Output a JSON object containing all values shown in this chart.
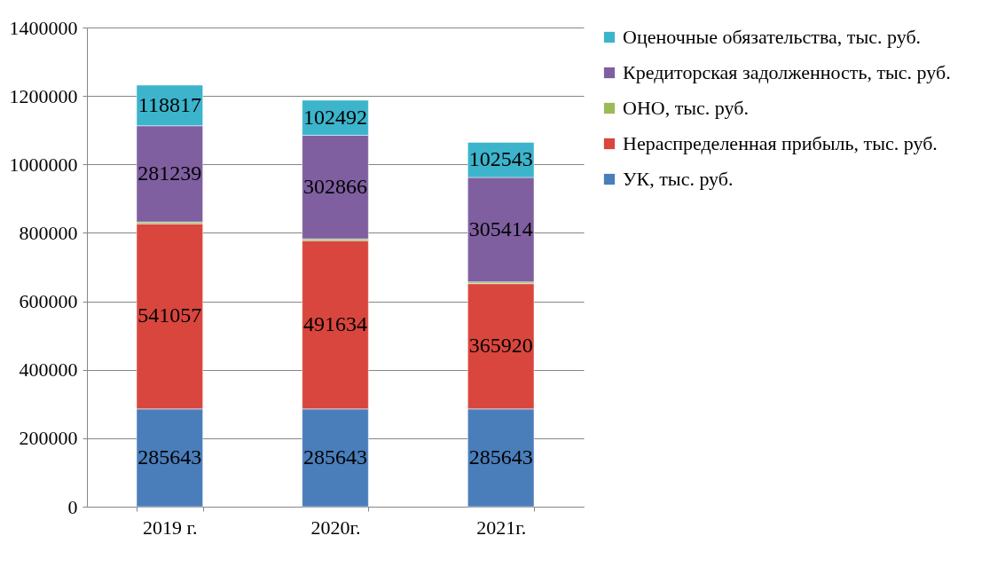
{
  "chart_data": {
    "type": "bar",
    "stacked": true,
    "categories": [
      "2019 г.",
      "2020г.",
      "2021г."
    ],
    "series": [
      {
        "name": "УК, тыс. руб.",
        "color": "#4a7ebb",
        "values": [
          285643,
          285643,
          285643
        ],
        "value_labels": [
          "285643",
          "285643",
          "285643"
        ]
      },
      {
        "name": "Нераспределенная прибыль, тыс. руб.",
        "color": "#d9463e",
        "values": [
          541057,
          491634,
          365920
        ],
        "value_labels": [
          "541057",
          "491634",
          "365920"
        ]
      },
      {
        "name": "ОНО, тыс. руб.",
        "color": "#9bbb59",
        "values": [
          5000,
          5000,
          5000
        ],
        "value_labels": [
          null,
          null,
          null
        ]
      },
      {
        "name": "Кредиторская задолженность, тыс. руб.",
        "color": "#7f5fa0",
        "values": [
          281239,
          302866,
          305414
        ],
        "value_labels": [
          "281239",
          "302866",
          "305414"
        ]
      },
      {
        "name": "Оценочные обязательства, тыс. руб.",
        "color": "#3cb4cc",
        "values": [
          118817,
          102492,
          102543
        ],
        "value_labels": [
          "118817",
          "102492",
          "102543"
        ]
      }
    ],
    "ylim": [
      0,
      1400000
    ],
    "yticks": [
      0,
      200000,
      400000,
      600000,
      800000,
      1000000,
      1200000,
      1400000
    ],
    "grid": "y",
    "legend": "right"
  }
}
